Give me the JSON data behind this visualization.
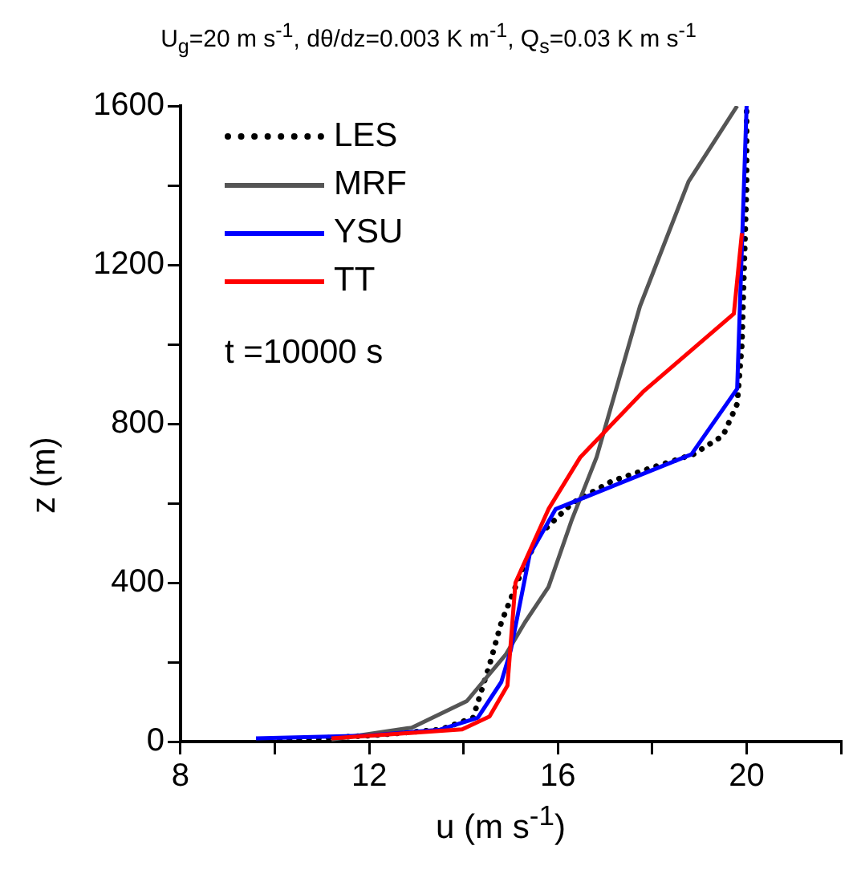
{
  "chart_data": {
    "type": "line",
    "title": "U$_{g}$=20 m s$^{-1}$, dθ/dz=0.003 K m$^{-1}$, Q$_{s}$=0.03 K m s$^{-1}$",
    "xlabel": "u (m s$^{-1}$)",
    "ylabel": "z (m)",
    "annotations": [
      "t =10000 s"
    ],
    "series": [
      {
        "name": "LES",
        "color": "#000000",
        "line_style": "dotted",
        "x": [
          10.1,
          12,
          13.5,
          14.2,
          14.55,
          14.8,
          15.23,
          15.6,
          16.3,
          17.15,
          18.0,
          18.87,
          19.5,
          19.8,
          19.9,
          19.95,
          20,
          20
        ],
        "values": [
          3,
          15,
          30,
          60,
          193,
          300,
          428,
          520,
          600,
          656,
          690,
          723,
          770,
          850,
          1000,
          1200,
          1400,
          1600
        ]
      },
      {
        "name": "MRF",
        "color": "#555555",
        "line_style": "solid",
        "x": [
          11.2,
          12.9,
          14.07,
          14.9,
          15.3,
          15.8,
          16.3,
          16.82,
          17.74,
          18.77,
          19.8
        ],
        "values": [
          5,
          35,
          102,
          220,
          300,
          389,
          560,
          716,
          1096,
          1410,
          1600
        ]
      },
      {
        "name": "YSU",
        "color": "#0000ff",
        "line_style": "solid",
        "x": [
          9.6,
          12,
          13.5,
          14.3,
          14.8,
          15.0,
          15.4,
          15.95,
          18.83,
          19.8,
          20
        ],
        "values": [
          8,
          15,
          30,
          60,
          150,
          230,
          470,
          585,
          723,
          888,
          1600
        ]
      },
      {
        "name": "TT",
        "color": "#ff0000",
        "line_style": "solid",
        "x": [
          11.2,
          13.97,
          14.55,
          14.93,
          15.1,
          15.8,
          16.47,
          17.8,
          19.73,
          19.9
        ],
        "values": [
          8,
          31,
          63,
          141,
          400,
          585,
          715,
          880,
          1077,
          1280
        ]
      }
    ],
    "xlim": [
      8,
      22
    ],
    "ylim": [
      0,
      1600
    ],
    "xticks": [
      8,
      {
        "value": 10,
        "label": null
      },
      12,
      {
        "value": 14,
        "label": null
      },
      16,
      {
        "value": 18,
        "label": null
      },
      20,
      {
        "value": 22,
        "label": null
      }
    ],
    "yticks": [
      0,
      {
        "value": 200,
        "label": null
      },
      400,
      {
        "value": 600,
        "label": null
      },
      800,
      {
        "value": 1000,
        "label": null
      },
      1200,
      {
        "value": 1400,
        "label": null
      },
      1600
    ],
    "grid": false,
    "legend": "top left",
    "marker": "none"
  }
}
